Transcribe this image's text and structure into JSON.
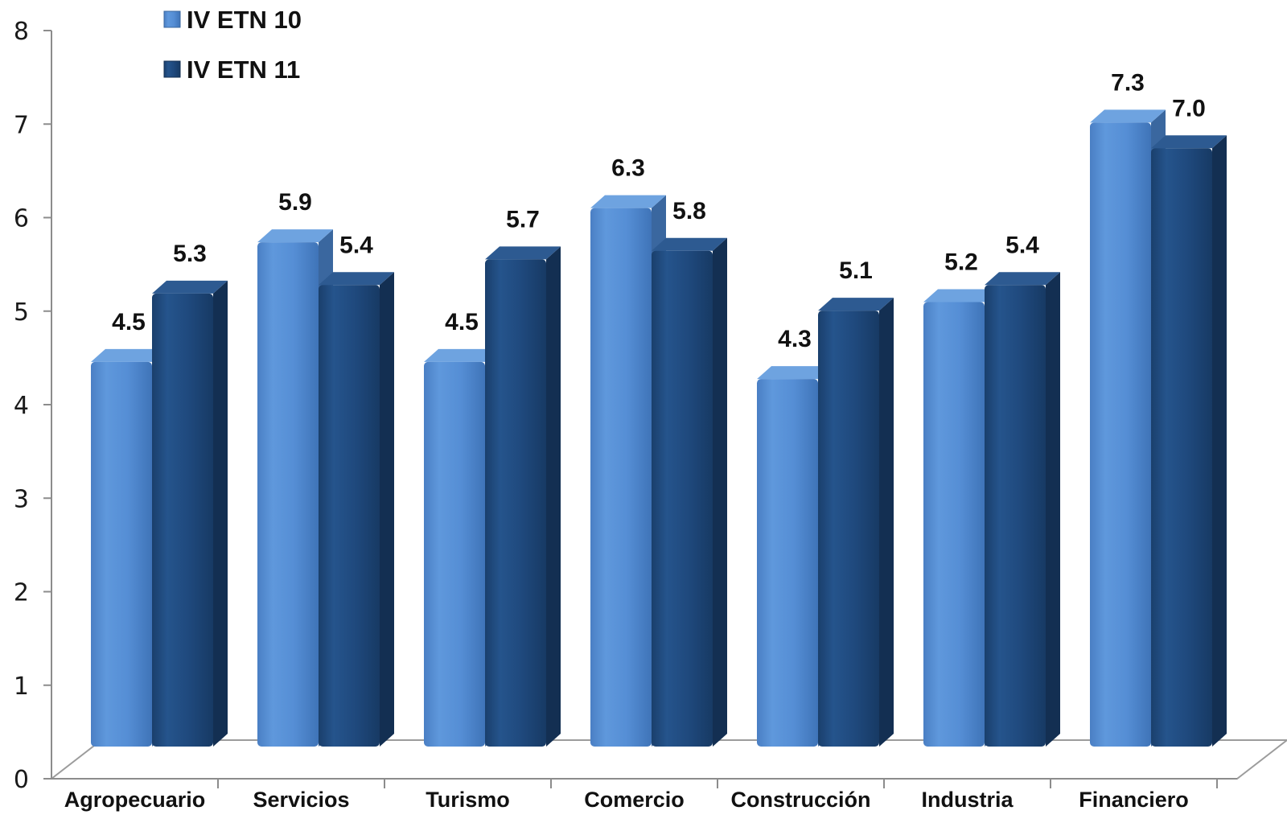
{
  "chart_data": {
    "type": "bar",
    "title": "",
    "xlabel": "",
    "ylabel": "",
    "ylim": [
      0,
      8
    ],
    "yticks": [
      "0",
      "1",
      "2",
      "3",
      "4",
      "5",
      "6",
      "7",
      "8"
    ],
    "categories": [
      "Agropecuario",
      "Servicios",
      "Turismo",
      "Comercio",
      "Construcción",
      "Industria",
      "Financiero"
    ],
    "series": [
      {
        "name": "IV ETN 10",
        "values": [
          4.5,
          5.9,
          4.5,
          6.3,
          4.3,
          5.2,
          7.3
        ],
        "labels": [
          "4.5",
          "5.9",
          "4.5",
          "6.3",
          "4.3",
          "5.2",
          "7.3"
        ],
        "color": "#558ed5"
      },
      {
        "name": "IV ETN 11",
        "values": [
          5.3,
          5.4,
          5.7,
          5.8,
          5.1,
          5.4,
          7.0
        ],
        "labels": [
          "5.3",
          "5.4",
          "5.7",
          "5.8",
          "5.1",
          "5.4",
          "7.0"
        ],
        "color": "#1f497d"
      }
    ],
    "grid": false,
    "legend_position": "top-left",
    "style": "3d-clustered-column"
  }
}
